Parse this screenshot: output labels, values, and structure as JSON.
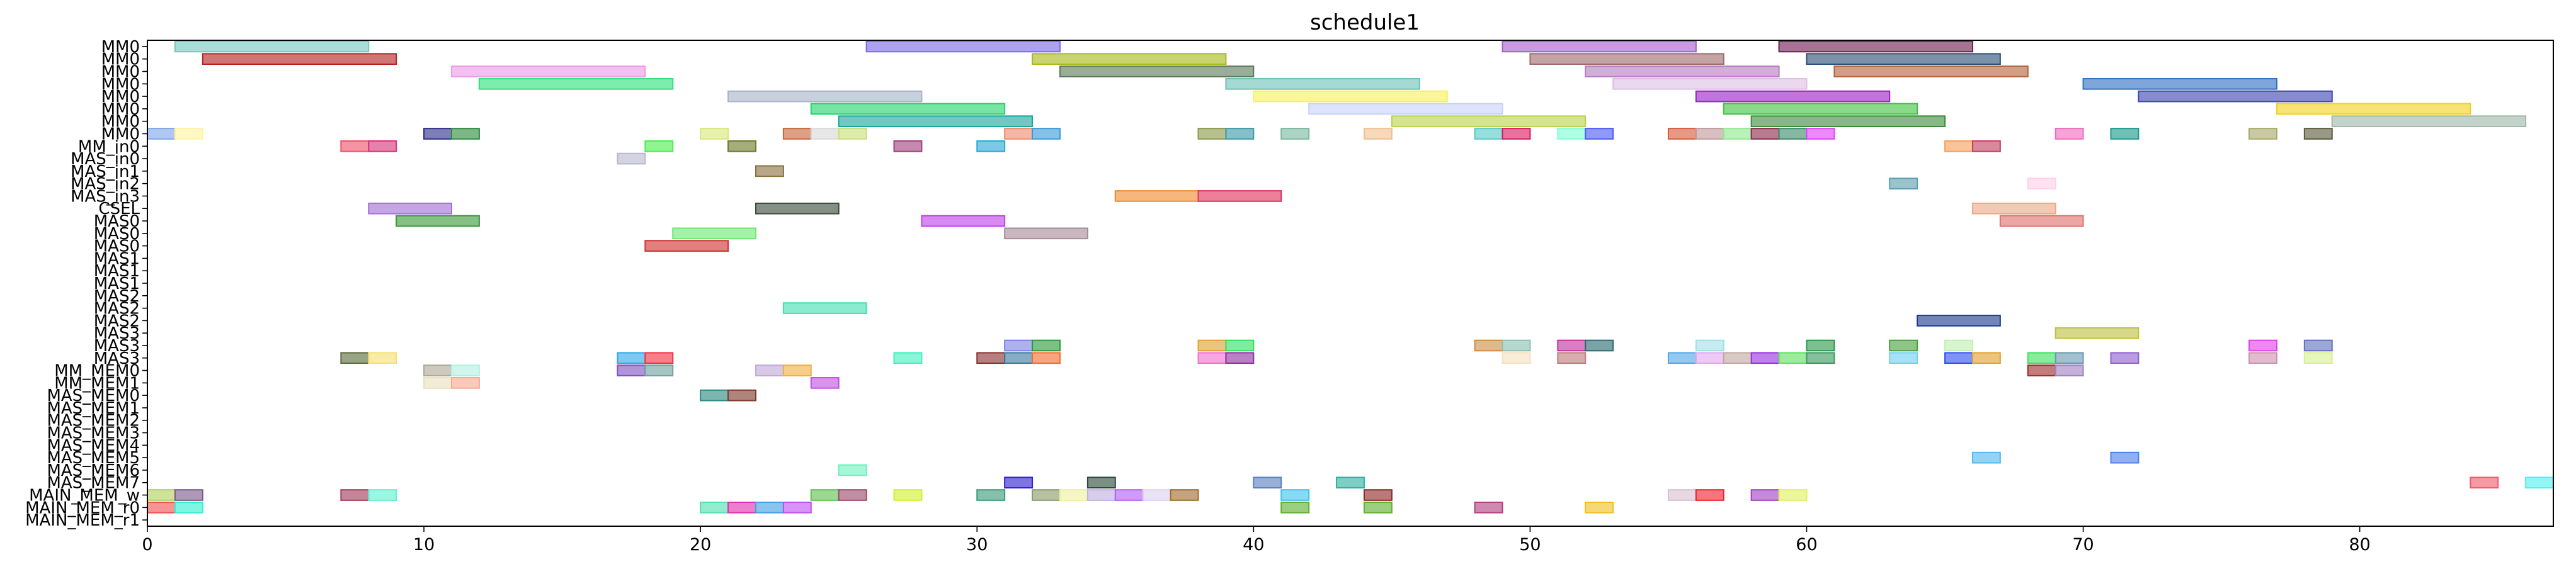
{
  "chart_data": {
    "type": "gantt",
    "title": "schedule1",
    "xlim": [
      0,
      87
    ],
    "x_ticks": [
      0,
      10,
      20,
      30,
      40,
      50,
      60,
      70,
      80
    ],
    "grid": false,
    "lanes": [
      "MM0",
      "MM0",
      "MM0",
      "MM0",
      "MM0",
      "MM0",
      "MM0",
      "MM0",
      "MM_in0",
      "MAS_in0",
      "MAS_in1",
      "MAS_in2",
      "MAS_in3",
      "CSEL",
      "MAS0",
      "MAS0",
      "MAS0",
      "MAS1",
      "MAS1",
      "MAS1",
      "MAS2",
      "MAS2",
      "MAS2",
      "MAS3",
      "MAS3",
      "MAS3",
      "MM_MEM0",
      "MM_MEM1",
      "MAS_MEM0",
      "MAS_MEM1",
      "MAS_MEM2",
      "MAS_MEM3",
      "MAS_MEM4",
      "MAS_MEM5",
      "MAS_MEM6",
      "MAS_MEM7",
      "MAIN_MEM_w",
      "MAIN_MEM_r0",
      "MAIN_MEM_r1"
    ],
    "tasks": [
      {
        "lane": 0,
        "start": 1,
        "end": 8,
        "color": "#76c7c0"
      },
      {
        "lane": 0,
        "start": 26,
        "end": 33,
        "color": "#7b68ee"
      },
      {
        "lane": 0,
        "start": 49,
        "end": 56,
        "color": "#a45fc7"
      },
      {
        "lane": 0,
        "start": 59,
        "end": 66,
        "color": "#6b1e50"
      },
      {
        "lane": 1,
        "start": 2,
        "end": 9,
        "color": "#b22222"
      },
      {
        "lane": 1,
        "start": 32,
        "end": 39,
        "color": "#aab81c"
      },
      {
        "lane": 1,
        "start": 50,
        "end": 57,
        "color": "#9e6b6b"
      },
      {
        "lane": 1,
        "start": 60,
        "end": 67,
        "color": "#2c4f74"
      },
      {
        "lane": 2,
        "start": 11,
        "end": 18,
        "color": "#ee9ae8"
      },
      {
        "lane": 2,
        "start": 33,
        "end": 40,
        "color": "#5b7a5b"
      },
      {
        "lane": 2,
        "start": 52,
        "end": 59,
        "color": "#b77bbf"
      },
      {
        "lane": 2,
        "start": 61,
        "end": 68,
        "color": "#b4643a"
      },
      {
        "lane": 3,
        "start": 12,
        "end": 19,
        "color": "#2ee07a"
      },
      {
        "lane": 3,
        "start": 39,
        "end": 46,
        "color": "#6ec1b8"
      },
      {
        "lane": 3,
        "start": 53,
        "end": 60,
        "color": "#dcc0e3"
      },
      {
        "lane": 3,
        "start": 70,
        "end": 77,
        "color": "#2f6fc4"
      },
      {
        "lane": 4,
        "start": 21,
        "end": 28,
        "color": "#a9b2c8"
      },
      {
        "lane": 4,
        "start": 40,
        "end": 47,
        "color": "#f5f25a"
      },
      {
        "lane": 4,
        "start": 56,
        "end": 63,
        "color": "#9a1fc9"
      },
      {
        "lane": 4,
        "start": 72,
        "end": 79,
        "color": "#3d43b2"
      },
      {
        "lane": 5,
        "start": 24,
        "end": 31,
        "color": "#24d46a"
      },
      {
        "lane": 5,
        "start": 42,
        "end": 49,
        "color": "#c6d2f7"
      },
      {
        "lane": 5,
        "start": 57,
        "end": 64,
        "color": "#3fc43f"
      },
      {
        "lane": 5,
        "start": 77,
        "end": 84,
        "color": "#f0d21e"
      },
      {
        "lane": 6,
        "start": 25,
        "end": 32,
        "color": "#1aa59d"
      },
      {
        "lane": 6,
        "start": 45,
        "end": 52,
        "color": "#b9d34f"
      },
      {
        "lane": 6,
        "start": 58,
        "end": 65,
        "color": "#3a8c3a"
      },
      {
        "lane": 6,
        "start": 79,
        "end": 86,
        "color": "#9fb8a8"
      },
      {
        "lane": 7,
        "start": 0,
        "end": 1,
        "color": "#7fa6e8"
      },
      {
        "lane": 7,
        "start": 1,
        "end": 2,
        "color": "#fff3a0"
      },
      {
        "lane": 7,
        "start": 10,
        "end": 11,
        "color": "#2d2d8c"
      },
      {
        "lane": 7,
        "start": 11,
        "end": 12,
        "color": "#2e8b3e"
      },
      {
        "lane": 7,
        "start": 20,
        "end": 21,
        "color": "#d9e87a"
      },
      {
        "lane": 7,
        "start": 23,
        "end": 24,
        "color": "#c9663a"
      },
      {
        "lane": 7,
        "start": 24,
        "end": 25,
        "color": "#d9d9d9"
      },
      {
        "lane": 7,
        "start": 25,
        "end": 26,
        "color": "#c8e07a"
      },
      {
        "lane": 7,
        "start": 31,
        "end": 32,
        "color": "#ee8a6f"
      },
      {
        "lane": 7,
        "start": 32,
        "end": 33,
        "color": "#3a9ad6"
      },
      {
        "lane": 7,
        "start": 38,
        "end": 39,
        "color": "#8a9a4a"
      },
      {
        "lane": 7,
        "start": 39,
        "end": 40,
        "color": "#3a9aa8"
      },
      {
        "lane": 7,
        "start": 41,
        "end": 42,
        "color": "#7ab8a0"
      },
      {
        "lane": 7,
        "start": 44,
        "end": 45,
        "color": "#f0c090"
      },
      {
        "lane": 7,
        "start": 48,
        "end": 49,
        "color": "#55cbc8"
      },
      {
        "lane": 7,
        "start": 49,
        "end": 50,
        "color": "#d81b60"
      },
      {
        "lane": 7,
        "start": 51,
        "end": 52,
        "color": "#7fffd4"
      },
      {
        "lane": 7,
        "start": 52,
        "end": 53,
        "color": "#4b5bf5"
      },
      {
        "lane": 7,
        "start": 55,
        "end": 56,
        "color": "#d95a3a"
      },
      {
        "lane": 7,
        "start": 56,
        "end": 57,
        "color": "#c09a9a"
      },
      {
        "lane": 7,
        "start": 57,
        "end": 58,
        "color": "#90e890"
      },
      {
        "lane": 7,
        "start": 58,
        "end": 59,
        "color": "#8b2a4a"
      },
      {
        "lane": 7,
        "start": 59,
        "end": 60,
        "color": "#3a8a6a"
      },
      {
        "lane": 7,
        "start": 60,
        "end": 61,
        "color": "#e040fb"
      },
      {
        "lane": 7,
        "start": 69,
        "end": 70,
        "color": "#f06bc0"
      },
      {
        "lane": 7,
        "start": 71,
        "end": 72,
        "color": "#1a9a8a"
      },
      {
        "lane": 7,
        "start": 76,
        "end": 77,
        "color": "#a8aa6a"
      },
      {
        "lane": 7,
        "start": 78,
        "end": 79,
        "color": "#5a5a3a"
      },
      {
        "lane": 8,
        "start": 7,
        "end": 8,
        "color": "#f0506b"
      },
      {
        "lane": 8,
        "start": 8,
        "end": 9,
        "color": "#d6337c"
      },
      {
        "lane": 8,
        "start": 18,
        "end": 19,
        "color": "#4cee4c"
      },
      {
        "lane": 8,
        "start": 21,
        "end": 22,
        "color": "#6e7a2a"
      },
      {
        "lane": 8,
        "start": 27,
        "end": 28,
        "color": "#a0407a"
      },
      {
        "lane": 8,
        "start": 30,
        "end": 31,
        "color": "#2aa8d8"
      },
      {
        "lane": 8,
        "start": 65,
        "end": 66,
        "color": "#f5a05a"
      },
      {
        "lane": 8,
        "start": 66,
        "end": 67,
        "color": "#c04060"
      },
      {
        "lane": 9,
        "start": 17,
        "end": 18,
        "color": "#b8b8d0"
      },
      {
        "lane": 10,
        "start": 22,
        "end": 23,
        "color": "#8a7040"
      },
      {
        "lane": 11,
        "start": 63,
        "end": 64,
        "color": "#5aa0b0"
      },
      {
        "lane": 11,
        "start": 68,
        "end": 69,
        "color": "#ffd0e8"
      },
      {
        "lane": 12,
        "start": 35,
        "end": 38,
        "color": "#f08a30"
      },
      {
        "lane": 12,
        "start": 38,
        "end": 41,
        "color": "#e0305a"
      },
      {
        "lane": 13,
        "start": 8,
        "end": 11,
        "color": "#a070d8"
      },
      {
        "lane": 13,
        "start": 22,
        "end": 25,
        "color": "#3a4a3a"
      },
      {
        "lane": 13,
        "start": 66,
        "end": 69,
        "color": "#eaa888"
      },
      {
        "lane": 14,
        "start": 9,
        "end": 12,
        "color": "#3a9a3a"
      },
      {
        "lane": 14,
        "start": 28,
        "end": 31,
        "color": "#c040e8"
      },
      {
        "lane": 14,
        "start": 67,
        "end": 70,
        "color": "#e07070"
      },
      {
        "lane": 15,
        "start": 19,
        "end": 22,
        "color": "#70e870"
      },
      {
        "lane": 15,
        "start": 31,
        "end": 34,
        "color": "#a88a98"
      },
      {
        "lane": 16,
        "start": 18,
        "end": 21,
        "color": "#d03030"
      },
      {
        "lane": 21,
        "start": 23,
        "end": 26,
        "color": "#40e0b0"
      },
      {
        "lane": 22,
        "start": 64,
        "end": 67,
        "color": "#1a3a90"
      },
      {
        "lane": 23,
        "start": 69,
        "end": 72,
        "color": "#c0c040"
      },
      {
        "lane": 24,
        "start": 31,
        "end": 32,
        "color": "#7a80e8"
      },
      {
        "lane": 24,
        "start": 32,
        "end": 33,
        "color": "#2a9a3a"
      },
      {
        "lane": 24,
        "start": 38,
        "end": 39,
        "color": "#e0a030"
      },
      {
        "lane": 24,
        "start": 39,
        "end": 40,
        "color": "#30e060"
      },
      {
        "lane": 24,
        "start": 48,
        "end": 49,
        "color": "#d08a40"
      },
      {
        "lane": 24,
        "start": 49,
        "end": 50,
        "color": "#8ac0b0"
      },
      {
        "lane": 24,
        "start": 51,
        "end": 52,
        "color": "#c030a0"
      },
      {
        "lane": 24,
        "start": 52,
        "end": 53,
        "color": "#2a6a70"
      },
      {
        "lane": 24,
        "start": 56,
        "end": 57,
        "color": "#a0e0e8"
      },
      {
        "lane": 24,
        "start": 60,
        "end": 61,
        "color": "#2a9a4a"
      },
      {
        "lane": 24,
        "start": 63,
        "end": 64,
        "color": "#4aa040"
      },
      {
        "lane": 24,
        "start": 65,
        "end": 66,
        "color": "#c0f0b0"
      },
      {
        "lane": 24,
        "start": 76,
        "end": 77,
        "color": "#e040e8"
      },
      {
        "lane": 24,
        "start": 78,
        "end": 79,
        "color": "#6070c0"
      },
      {
        "lane": 25,
        "start": 7,
        "end": 8,
        "color": "#5a6a3a"
      },
      {
        "lane": 25,
        "start": 8,
        "end": 9,
        "color": "#f5e070"
      },
      {
        "lane": 25,
        "start": 17,
        "end": 18,
        "color": "#30a8e8"
      },
      {
        "lane": 25,
        "start": 18,
        "end": 19,
        "color": "#f03040"
      },
      {
        "lane": 25,
        "start": 27,
        "end": 28,
        "color": "#40f0c0"
      },
      {
        "lane": 25,
        "start": 30,
        "end": 31,
        "color": "#8a3030"
      },
      {
        "lane": 25,
        "start": 31,
        "end": 32,
        "color": "#3a7aa0"
      },
      {
        "lane": 25,
        "start": 32,
        "end": 33,
        "color": "#f07030"
      },
      {
        "lane": 25,
        "start": 38,
        "end": 39,
        "color": "#f070d0"
      },
      {
        "lane": 25,
        "start": 39,
        "end": 40,
        "color": "#9030a0"
      },
      {
        "lane": 25,
        "start": 49,
        "end": 50,
        "color": "#f5e0c0"
      },
      {
        "lane": 25,
        "start": 51,
        "end": 52,
        "color": "#c07a7a"
      },
      {
        "lane": 25,
        "start": 55,
        "end": 56,
        "color": "#50a8e8"
      },
      {
        "lane": 25,
        "start": 56,
        "end": 57,
        "color": "#e0a8f0"
      },
      {
        "lane": 25,
        "start": 57,
        "end": 58,
        "color": "#c0a8a0"
      },
      {
        "lane": 25,
        "start": 58,
        "end": 59,
        "color": "#9a30e0"
      },
      {
        "lane": 25,
        "start": 59,
        "end": 60,
        "color": "#60e060"
      },
      {
        "lane": 25,
        "start": 60,
        "end": 61,
        "color": "#3a9a60"
      },
      {
        "lane": 25,
        "start": 63,
        "end": 64,
        "color": "#70d0f0"
      },
      {
        "lane": 25,
        "start": 65,
        "end": 66,
        "color": "#3050f0"
      },
      {
        "lane": 25,
        "start": 66,
        "end": 67,
        "color": "#e0a030"
      },
      {
        "lane": 25,
        "start": 68,
        "end": 69,
        "color": "#40e060"
      },
      {
        "lane": 25,
        "start": 69,
        "end": 70,
        "color": "#6a9ab0"
      },
      {
        "lane": 25,
        "start": 71,
        "end": 72,
        "color": "#9060d0"
      },
      {
        "lane": 25,
        "start": 76,
        "end": 77,
        "color": "#d090b0"
      },
      {
        "lane": 25,
        "start": 78,
        "end": 79,
        "color": "#d8f090"
      },
      {
        "lane": 26,
        "start": 10,
        "end": 11,
        "color": "#b0a898"
      },
      {
        "lane": 26,
        "start": 11,
        "end": 12,
        "color": "#b0f0e0"
      },
      {
        "lane": 26,
        "start": 17,
        "end": 18,
        "color": "#8050c0"
      },
      {
        "lane": 26,
        "start": 18,
        "end": 19,
        "color": "#70a0a0"
      },
      {
        "lane": 26,
        "start": 22,
        "end": 23,
        "color": "#c0a8d8"
      },
      {
        "lane": 26,
        "start": 23,
        "end": 24,
        "color": "#f0b040"
      },
      {
        "lane": 26,
        "start": 68,
        "end": 69,
        "color": "#a02a2a"
      },
      {
        "lane": 26,
        "start": 69,
        "end": 70,
        "color": "#a080c0"
      },
      {
        "lane": 27,
        "start": 10,
        "end": 11,
        "color": "#e8e0c0"
      },
      {
        "lane": 27,
        "start": 11,
        "end": 12,
        "color": "#f5a890"
      },
      {
        "lane": 27,
        "start": 24,
        "end": 25,
        "color": "#c050e0"
      },
      {
        "lane": 28,
        "start": 20,
        "end": 21,
        "color": "#2a8a80"
      },
      {
        "lane": 28,
        "start": 21,
        "end": 22,
        "color": "#7a3a2a"
      },
      {
        "lane": 33,
        "start": 66,
        "end": 67,
        "color": "#50b8f0"
      },
      {
        "lane": 33,
        "start": 71,
        "end": 72,
        "color": "#4a80f0"
      },
      {
        "lane": 34,
        "start": 25,
        "end": 26,
        "color": "#70f0c0"
      },
      {
        "lane": 35,
        "start": 31,
        "end": 32,
        "color": "#3020d0"
      },
      {
        "lane": 35,
        "start": 34,
        "end": 35,
        "color": "#2a4a3a"
      },
      {
        "lane": 35,
        "start": 40,
        "end": 41,
        "color": "#5a80c0"
      },
      {
        "lane": 35,
        "start": 43,
        "end": 44,
        "color": "#30b0a0"
      },
      {
        "lane": 35,
        "start": 84,
        "end": 85,
        "color": "#f05a6a"
      },
      {
        "lane": 35,
        "start": 86,
        "end": 87,
        "color": "#50f0f0"
      },
      {
        "lane": 36,
        "start": 0,
        "end": 1,
        "color": "#b0d060"
      },
      {
        "lane": 36,
        "start": 1,
        "end": 2,
        "color": "#7a5a8a"
      },
      {
        "lane": 36,
        "start": 7,
        "end": 8,
        "color": "#a03a5a"
      },
      {
        "lane": 36,
        "start": 8,
        "end": 9,
        "color": "#60f0d0"
      },
      {
        "lane": 36,
        "start": 24,
        "end": 25,
        "color": "#60c050"
      },
      {
        "lane": 36,
        "start": 25,
        "end": 26,
        "color": "#9a4a6a"
      },
      {
        "lane": 36,
        "start": 27,
        "end": 28,
        "color": "#d0f030"
      },
      {
        "lane": 36,
        "start": 30,
        "end": 31,
        "color": "#3a9a7a"
      },
      {
        "lane": 36,
        "start": 32,
        "end": 33,
        "color": "#8a9a6a"
      },
      {
        "lane": 36,
        "start": 33,
        "end": 34,
        "color": "#f0f0a0"
      },
      {
        "lane": 36,
        "start": 34,
        "end": 35,
        "color": "#c0b0e0"
      },
      {
        "lane": 36,
        "start": 35,
        "end": 36,
        "color": "#b060f0"
      },
      {
        "lane": 36,
        "start": 36,
        "end": 37,
        "color": "#e0d0f0"
      },
      {
        "lane": 36,
        "start": 37,
        "end": 38,
        "color": "#a06a30"
      },
      {
        "lane": 36,
        "start": 41,
        "end": 42,
        "color": "#40c0f0"
      },
      {
        "lane": 36,
        "start": 44,
        "end": 45,
        "color": "#8a2a2a"
      },
      {
        "lane": 36,
        "start": 55,
        "end": 56,
        "color": "#d8c0d0"
      },
      {
        "lane": 36,
        "start": 56,
        "end": 57,
        "color": "#f02030"
      },
      {
        "lane": 36,
        "start": 58,
        "end": 59,
        "color": "#a040c0"
      },
      {
        "lane": 36,
        "start": 59,
        "end": 60,
        "color": "#e0f060"
      },
      {
        "lane": 37,
        "start": 0,
        "end": 1,
        "color": "#f05050"
      },
      {
        "lane": 37,
        "start": 1,
        "end": 2,
        "color": "#30f0d0"
      },
      {
        "lane": 37,
        "start": 20,
        "end": 21,
        "color": "#50e0b0"
      },
      {
        "lane": 37,
        "start": 21,
        "end": 22,
        "color": "#e030b0"
      },
      {
        "lane": 37,
        "start": 22,
        "end": 23,
        "color": "#40a0e0"
      },
      {
        "lane": 37,
        "start": 23,
        "end": 24,
        "color": "#c050f0"
      },
      {
        "lane": 37,
        "start": 41,
        "end": 42,
        "color": "#60b030"
      },
      {
        "lane": 37,
        "start": 44,
        "end": 45,
        "color": "#60b030"
      },
      {
        "lane": 37,
        "start": 48,
        "end": 49,
        "color": "#b04080"
      },
      {
        "lane": 37,
        "start": 52,
        "end": 53,
        "color": "#f0c020"
      }
    ]
  }
}
